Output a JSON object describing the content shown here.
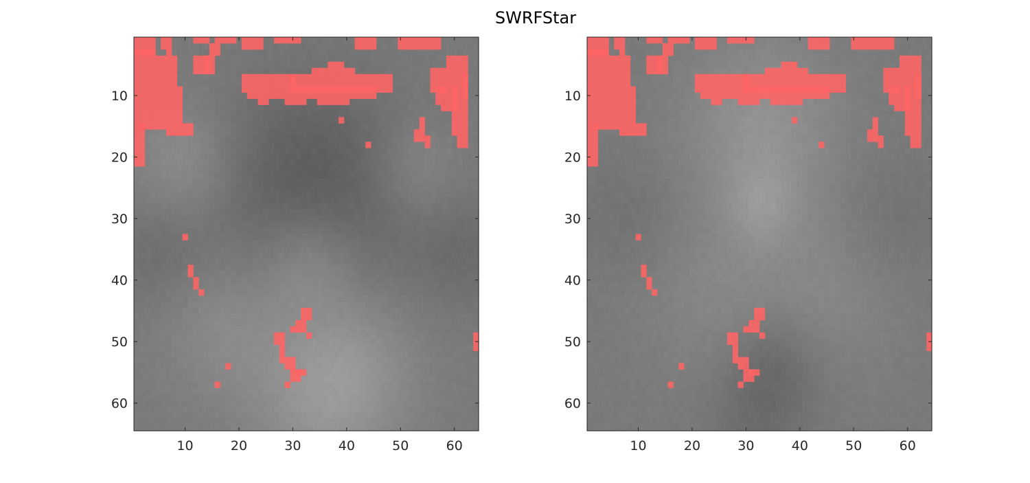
{
  "figure": {
    "title": "SWRFStar"
  },
  "colors": {
    "overlay": "#ff6464",
    "axis": "#262626",
    "background": "#ffffff"
  },
  "chart_data": [
    {
      "type": "heatmap",
      "title": "",
      "xlabel": "",
      "ylabel": "",
      "xlim": [
        0.5,
        64.5
      ],
      "ylim": [
        0.5,
        64.5
      ],
      "y_reversed": true,
      "xticks": [
        10,
        20,
        30,
        40,
        50,
        60
      ],
      "yticks": [
        10,
        20,
        30,
        40,
        50,
        60
      ],
      "background_blobs": [
        {
          "cx": 10,
          "cy": 21,
          "r": 7,
          "w": 0.65
        },
        {
          "cx": 53,
          "cy": 22,
          "r": 6,
          "w": 0.55
        },
        {
          "cx": 33,
          "cy": 37,
          "r": 6,
          "w": 0.6
        },
        {
          "cx": 40,
          "cy": 54,
          "r": 9,
          "w": 0.8
        },
        {
          "cx": 18,
          "cy": 47,
          "r": 9,
          "w": 0.55
        },
        {
          "cx": 34,
          "cy": 63,
          "r": 9,
          "w": 0.45
        },
        {
          "cx": 24,
          "cy": 28,
          "r": 12,
          "w": -0.45
        },
        {
          "cx": 45,
          "cy": 27,
          "r": 12,
          "w": -0.45
        },
        {
          "cx": 5,
          "cy": 36,
          "r": 6,
          "w": -0.35
        },
        {
          "cx": 62,
          "cy": 36,
          "r": 6,
          "w": -0.35
        },
        {
          "cx": 33,
          "cy": 18,
          "r": 10,
          "w": -0.35
        }
      ],
      "overlay_rects": [
        [
          1,
          1,
          4,
          3
        ],
        [
          6,
          1,
          2,
          2
        ],
        [
          12,
          1,
          3,
          1
        ],
        [
          16,
          1,
          4,
          1
        ],
        [
          15,
          2,
          2,
          2
        ],
        [
          21,
          1,
          4,
          2
        ],
        [
          27,
          1,
          5,
          1
        ],
        [
          42,
          1,
          4,
          2
        ],
        [
          50,
          1,
          8,
          2
        ],
        [
          1,
          3,
          4,
          1
        ],
        [
          7,
          3,
          1,
          1
        ],
        [
          12,
          4,
          3,
          3
        ],
        [
          14,
          4,
          2,
          3
        ],
        [
          1,
          4,
          8,
          5
        ],
        [
          1,
          9,
          9,
          6
        ],
        [
          2,
          15,
          7,
          1
        ],
        [
          7,
          16,
          3,
          1
        ],
        [
          9,
          15,
          3,
          1
        ],
        [
          10,
          16,
          2,
          1
        ],
        [
          1,
          15,
          2,
          7
        ],
        [
          59,
          4,
          4,
          5
        ],
        [
          56,
          6,
          3,
          4
        ],
        [
          62,
          7,
          1,
          4
        ],
        [
          60,
          9,
          3,
          8
        ],
        [
          61,
          17,
          2,
          2
        ],
        [
          57,
          9,
          4,
          3
        ],
        [
          58,
          12,
          3,
          1
        ],
        [
          30,
          7,
          19,
          3
        ],
        [
          34,
          6,
          8,
          1
        ],
        [
          37,
          5,
          3,
          1
        ],
        [
          21,
          7,
          10,
          2
        ],
        [
          21,
          9,
          25,
          1
        ],
        [
          22,
          10,
          24,
          1
        ],
        [
          24,
          11,
          2,
          1
        ],
        [
          29,
          11,
          4,
          1
        ],
        [
          35,
          11,
          6,
          1
        ],
        [
          39,
          14,
          1,
          1
        ],
        [
          44,
          18,
          1,
          1
        ],
        [
          54,
          14,
          1,
          2
        ],
        [
          53,
          16,
          2,
          2
        ],
        [
          55,
          17,
          1,
          2
        ],
        [
          10,
          33,
          1,
          1
        ],
        [
          11,
          38,
          1,
          2
        ],
        [
          12,
          40,
          1,
          2
        ],
        [
          13,
          42,
          1,
          1
        ],
        [
          32,
          45,
          2,
          2
        ],
        [
          31,
          47,
          2,
          2
        ],
        [
          30,
          48,
          1,
          1
        ],
        [
          33,
          49,
          1,
          1
        ],
        [
          27,
          49,
          2,
          2
        ],
        [
          28,
          51,
          1,
          3
        ],
        [
          29,
          53,
          2,
          2
        ],
        [
          30,
          55,
          2,
          2
        ],
        [
          29,
          57,
          1,
          1
        ],
        [
          31,
          55,
          2,
          1
        ],
        [
          18,
          54,
          1,
          1
        ],
        [
          16,
          57,
          1,
          1
        ],
        [
          64,
          49,
          1,
          3
        ]
      ]
    },
    {
      "type": "heatmap",
      "title": "",
      "xlabel": "",
      "ylabel": "",
      "xlim": [
        0.5,
        64.5
      ],
      "ylim": [
        0.5,
        64.5
      ],
      "y_reversed": true,
      "xticks": [
        10,
        20,
        30,
        40,
        50,
        60
      ],
      "yticks": [
        10,
        20,
        30,
        40,
        50,
        60
      ],
      "background_blobs": [
        {
          "cx": 33,
          "cy": 15,
          "r": 10,
          "w": 0.75
        },
        {
          "cx": 33,
          "cy": 28,
          "r": 5,
          "w": 0.55
        },
        {
          "cx": 24,
          "cy": 42,
          "r": 10,
          "w": 0.35
        },
        {
          "cx": 45,
          "cy": 42,
          "r": 10,
          "w": 0.35
        },
        {
          "cx": 35,
          "cy": 54,
          "r": 6,
          "w": -0.55
        },
        {
          "cx": 32,
          "cy": 64,
          "r": 7,
          "w": -0.35
        },
        {
          "cx": 8,
          "cy": 30,
          "r": 7,
          "w": -0.25
        },
        {
          "cx": 58,
          "cy": 30,
          "r": 7,
          "w": -0.25
        }
      ],
      "overlay_rects": [
        [
          1,
          1,
          4,
          3
        ],
        [
          6,
          1,
          2,
          2
        ],
        [
          12,
          1,
          3,
          1
        ],
        [
          16,
          1,
          4,
          1
        ],
        [
          15,
          2,
          2,
          2
        ],
        [
          21,
          1,
          4,
          2
        ],
        [
          27,
          1,
          5,
          1
        ],
        [
          42,
          1,
          4,
          2
        ],
        [
          50,
          1,
          8,
          2
        ],
        [
          1,
          3,
          4,
          1
        ],
        [
          7,
          3,
          1,
          1
        ],
        [
          12,
          4,
          3,
          3
        ],
        [
          14,
          4,
          2,
          3
        ],
        [
          1,
          4,
          8,
          5
        ],
        [
          1,
          9,
          9,
          6
        ],
        [
          2,
          15,
          7,
          1
        ],
        [
          7,
          16,
          3,
          1
        ],
        [
          9,
          15,
          3,
          1
        ],
        [
          10,
          16,
          2,
          1
        ],
        [
          1,
          15,
          2,
          7
        ],
        [
          59,
          4,
          4,
          5
        ],
        [
          56,
          6,
          3,
          4
        ],
        [
          62,
          7,
          1,
          4
        ],
        [
          60,
          9,
          3,
          8
        ],
        [
          61,
          17,
          2,
          2
        ],
        [
          57,
          9,
          4,
          3
        ],
        [
          58,
          12,
          3,
          1
        ],
        [
          30,
          7,
          19,
          3
        ],
        [
          34,
          6,
          8,
          1
        ],
        [
          37,
          5,
          3,
          1
        ],
        [
          21,
          7,
          10,
          2
        ],
        [
          21,
          9,
          25,
          1
        ],
        [
          22,
          10,
          24,
          1
        ],
        [
          24,
          11,
          2,
          1
        ],
        [
          29,
          11,
          4,
          1
        ],
        [
          35,
          11,
          6,
          1
        ],
        [
          39,
          14,
          1,
          1
        ],
        [
          44,
          18,
          1,
          1
        ],
        [
          54,
          14,
          1,
          2
        ],
        [
          53,
          16,
          2,
          2
        ],
        [
          55,
          17,
          1,
          2
        ],
        [
          10,
          33,
          1,
          1
        ],
        [
          11,
          38,
          1,
          2
        ],
        [
          12,
          40,
          1,
          2
        ],
        [
          13,
          42,
          1,
          1
        ],
        [
          32,
          45,
          2,
          2
        ],
        [
          31,
          47,
          2,
          2
        ],
        [
          30,
          48,
          1,
          1
        ],
        [
          33,
          49,
          1,
          1
        ],
        [
          27,
          49,
          2,
          2
        ],
        [
          28,
          51,
          1,
          3
        ],
        [
          29,
          53,
          2,
          2
        ],
        [
          30,
          55,
          2,
          2
        ],
        [
          29,
          57,
          1,
          1
        ],
        [
          31,
          55,
          2,
          1
        ],
        [
          18,
          54,
          1,
          1
        ],
        [
          16,
          57,
          1,
          1
        ],
        [
          64,
          49,
          1,
          3
        ]
      ]
    }
  ]
}
